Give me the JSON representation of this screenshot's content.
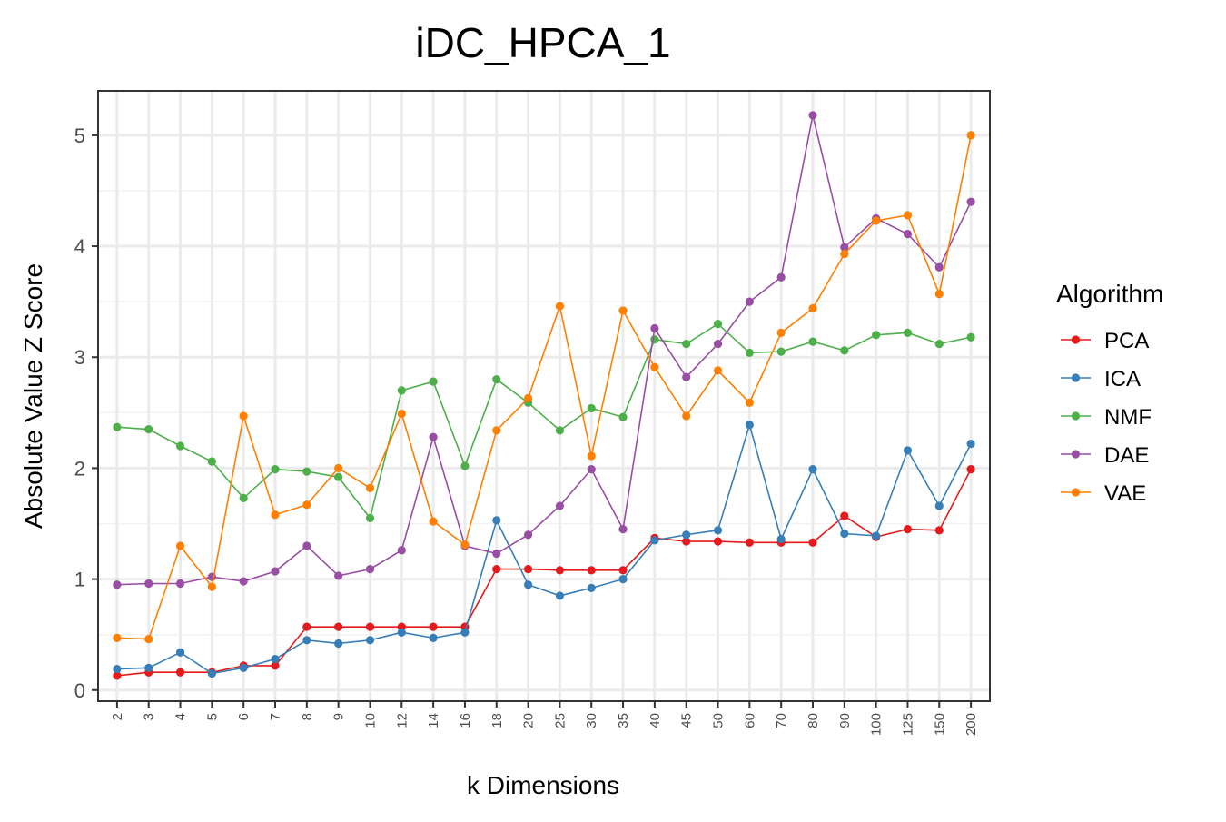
{
  "chart_data": {
    "type": "line",
    "title": "iDC_HPCA_1",
    "xlabel": "k Dimensions",
    "ylabel": "Absolute Value Z Score",
    "categories": [
      "2",
      "3",
      "4",
      "5",
      "6",
      "7",
      "8",
      "9",
      "10",
      "12",
      "14",
      "16",
      "18",
      "20",
      "25",
      "30",
      "35",
      "40",
      "45",
      "50",
      "60",
      "70",
      "80",
      "90",
      "100",
      "125",
      "150",
      "200"
    ],
    "ylim": [
      -0.1,
      5.4
    ],
    "yticks": [
      0,
      1,
      2,
      3,
      4,
      5
    ],
    "grid": true,
    "legend": {
      "title": "Algorithm",
      "position": "right"
    },
    "series": [
      {
        "name": "PCA",
        "color": "#e41a1c",
        "values": [
          0.13,
          0.16,
          0.16,
          0.16,
          0.22,
          0.22,
          0.57,
          0.57,
          0.57,
          0.57,
          0.57,
          0.57,
          1.09,
          1.09,
          1.08,
          1.08,
          1.08,
          1.37,
          1.34,
          1.34,
          1.33,
          1.33,
          1.33,
          1.57,
          1.38,
          1.45,
          1.44,
          1.99
        ]
      },
      {
        "name": "ICA",
        "color": "#377eb8",
        "values": [
          0.19,
          0.2,
          0.34,
          0.15,
          0.2,
          0.28,
          0.45,
          0.42,
          0.45,
          0.52,
          0.47,
          0.52,
          1.53,
          0.95,
          0.85,
          0.92,
          1.0,
          1.35,
          1.4,
          1.44,
          2.39,
          1.36,
          1.99,
          1.41,
          1.39,
          2.16,
          1.66,
          2.22
        ]
      },
      {
        "name": "NMF",
        "color": "#4daf4a",
        "values": [
          2.37,
          2.35,
          2.2,
          2.06,
          1.73,
          1.99,
          1.97,
          1.92,
          1.55,
          2.7,
          2.78,
          2.02,
          2.8,
          2.59,
          2.34,
          2.54,
          2.46,
          3.16,
          3.12,
          3.3,
          3.04,
          3.05,
          3.14,
          3.06,
          3.2,
          3.22,
          3.12,
          3.18
        ]
      },
      {
        "name": "DAE",
        "color": "#984ea3",
        "values": [
          0.95,
          0.96,
          0.96,
          1.02,
          0.98,
          1.07,
          1.3,
          1.03,
          1.09,
          1.26,
          2.28,
          1.3,
          1.23,
          1.4,
          1.66,
          1.99,
          1.45,
          3.26,
          2.82,
          3.12,
          3.5,
          3.72,
          5.18,
          3.99,
          4.25,
          4.11,
          3.81,
          4.4
        ]
      },
      {
        "name": "VAE",
        "color": "#ff7f00",
        "values": [
          0.47,
          0.46,
          1.3,
          0.93,
          2.47,
          1.58,
          1.67,
          2.0,
          1.82,
          2.49,
          1.52,
          1.31,
          2.34,
          2.63,
          3.46,
          2.11,
          3.42,
          2.91,
          2.47,
          2.88,
          2.59,
          3.22,
          3.44,
          3.93,
          4.23,
          4.28,
          3.57,
          5.0
        ]
      }
    ]
  }
}
